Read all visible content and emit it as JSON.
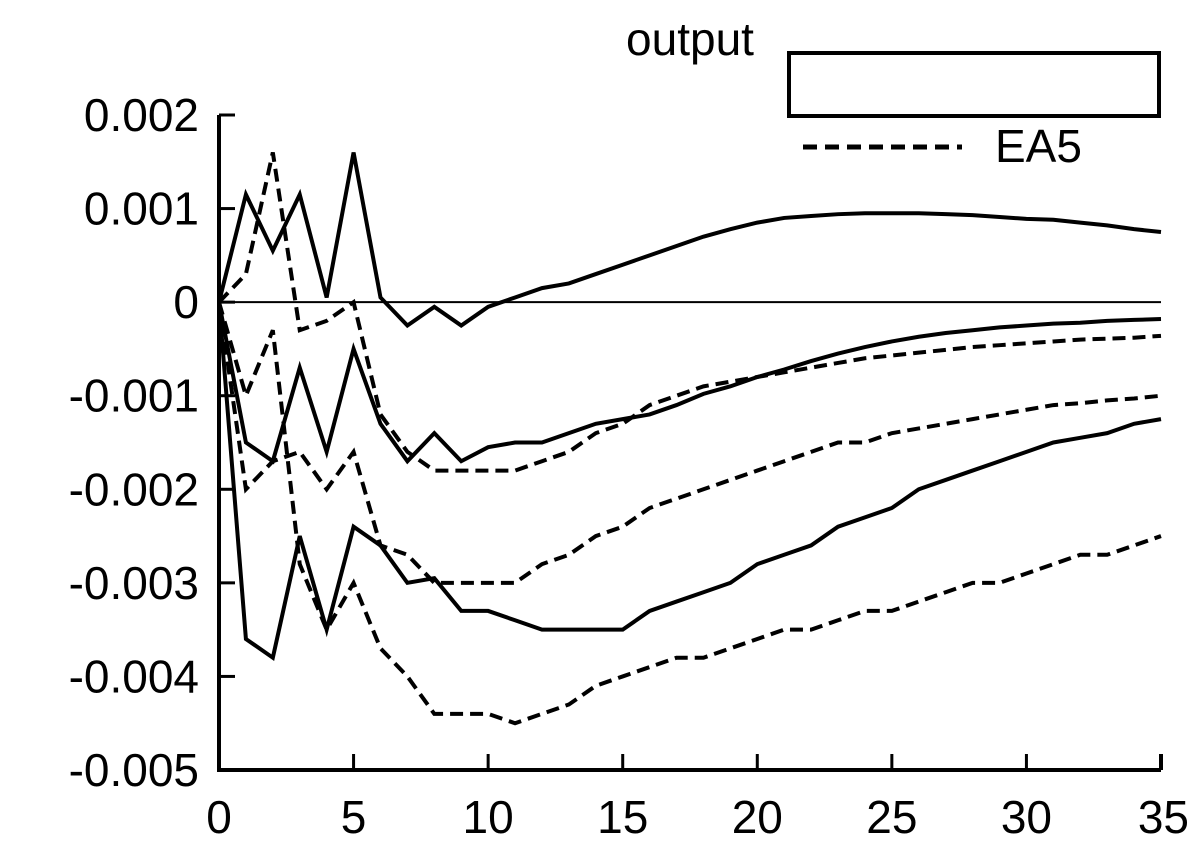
{
  "chart_data": {
    "type": "line",
    "title": "output",
    "xlabel": "",
    "ylabel": "",
    "xlim": [
      0,
      35
    ],
    "ylim": [
      -0.005,
      0.002
    ],
    "xticks": [
      "0",
      "5",
      "10",
      "15",
      "20",
      "25",
      "30",
      "35"
    ],
    "yticks": [
      "0.002",
      "0.001",
      "0",
      "-0.001",
      "-0.002",
      "-0.003",
      "-0.004",
      "-0.005"
    ],
    "xtick_values": [
      0,
      5,
      10,
      15,
      20,
      25,
      30,
      35
    ],
    "ytick_values": [
      0.002,
      0.001,
      0,
      -0.001,
      -0.002,
      -0.003,
      -0.004,
      -0.005
    ],
    "zero_line": true,
    "grid": false,
    "legend": {
      "placement": "top-right",
      "entries": [
        {
          "label": "",
          "style": "solid"
        },
        {
          "label": "EA5",
          "style": "dashed"
        }
      ]
    },
    "x": [
      0,
      1,
      2,
      3,
      4,
      5,
      6,
      7,
      8,
      9,
      10,
      11,
      12,
      13,
      14,
      15,
      16,
      17,
      18,
      19,
      20,
      21,
      22,
      23,
      24,
      25,
      26,
      27,
      28,
      29,
      30,
      31,
      32,
      33,
      34,
      35
    ],
    "series": [
      {
        "group": "solid",
        "style": "solid",
        "values": [
          0,
          0.00115,
          0.00055,
          0.00115,
          5e-05,
          0.0016,
          5e-05,
          -0.00025,
          -5e-05,
          -0.00025,
          -5e-05,
          5e-05,
          0.00015,
          0.0002,
          0.0003,
          0.0004,
          0.0005,
          0.0006,
          0.0007,
          0.00078,
          0.00085,
          0.0009,
          0.00092,
          0.00094,
          0.00095,
          0.00095,
          0.00095,
          0.00094,
          0.00093,
          0.00091,
          0.00089,
          0.00088,
          0.00085,
          0.00082,
          0.00078,
          0.00075
        ]
      },
      {
        "group": "solid",
        "style": "solid",
        "values": [
          0,
          -0.0015,
          -0.0017,
          -0.0007,
          -0.0016,
          -0.0005,
          -0.0013,
          -0.0017,
          -0.0014,
          -0.0017,
          -0.00155,
          -0.0015,
          -0.0015,
          -0.0014,
          -0.0013,
          -0.00125,
          -0.0012,
          -0.0011,
          -0.00098,
          -0.0009,
          -0.0008,
          -0.00072,
          -0.00063,
          -0.00055,
          -0.00048,
          -0.00042,
          -0.00037,
          -0.00033,
          -0.0003,
          -0.00027,
          -0.00025,
          -0.00023,
          -0.00022,
          -0.0002,
          -0.00019,
          -0.00018
        ]
      },
      {
        "group": "solid",
        "style": "solid",
        "values": [
          0,
          -0.0036,
          -0.0038,
          -0.0025,
          -0.0035,
          -0.0024,
          -0.0026,
          -0.003,
          -0.00295,
          -0.0033,
          -0.0033,
          -0.0034,
          -0.0035,
          -0.0035,
          -0.0035,
          -0.0035,
          -0.0033,
          -0.0032,
          -0.0031,
          -0.003,
          -0.0028,
          -0.0027,
          -0.0026,
          -0.0024,
          -0.0023,
          -0.0022,
          -0.002,
          -0.0019,
          -0.0018,
          -0.0017,
          -0.0016,
          -0.0015,
          -0.00145,
          -0.0014,
          -0.0013,
          -0.00125
        ]
      },
      {
        "group": "EA5",
        "style": "dashed",
        "values": [
          0,
          0.0003,
          0.0016,
          -0.0003,
          -0.0002,
          0,
          -0.0012,
          -0.0016,
          -0.0018,
          -0.0018,
          -0.0018,
          -0.0018,
          -0.0017,
          -0.0016,
          -0.0014,
          -0.0013,
          -0.0011,
          -0.001,
          -0.0009,
          -0.00085,
          -0.0008,
          -0.00075,
          -0.0007,
          -0.00065,
          -0.0006,
          -0.00057,
          -0.00054,
          -0.00051,
          -0.00048,
          -0.00046,
          -0.00044,
          -0.00042,
          -0.0004,
          -0.00039,
          -0.00038,
          -0.00036
        ]
      },
      {
        "group": "EA5",
        "style": "dashed",
        "values": [
          0,
          -0.002,
          -0.0017,
          -0.0016,
          -0.002,
          -0.0016,
          -0.0026,
          -0.0027,
          -0.003,
          -0.003,
          -0.003,
          -0.003,
          -0.0028,
          -0.0027,
          -0.0025,
          -0.0024,
          -0.0022,
          -0.0021,
          -0.002,
          -0.0019,
          -0.0018,
          -0.0017,
          -0.0016,
          -0.0015,
          -0.0015,
          -0.0014,
          -0.00135,
          -0.0013,
          -0.00125,
          -0.0012,
          -0.00115,
          -0.0011,
          -0.00108,
          -0.00105,
          -0.00103,
          -0.001
        ]
      },
      {
        "group": "EA5",
        "style": "dashed",
        "values": [
          0,
          -0.001,
          -0.0003,
          -0.0028,
          -0.0035,
          -0.003,
          -0.0037,
          -0.004,
          -0.0044,
          -0.0044,
          -0.0044,
          -0.0045,
          -0.0044,
          -0.0043,
          -0.0041,
          -0.004,
          -0.0039,
          -0.0038,
          -0.0038,
          -0.0037,
          -0.0036,
          -0.0035,
          -0.0035,
          -0.0034,
          -0.0033,
          -0.0033,
          -0.0032,
          -0.0031,
          -0.003,
          -0.003,
          -0.0029,
          -0.0028,
          -0.0027,
          -0.0027,
          -0.0026,
          -0.0025
        ]
      }
    ]
  }
}
